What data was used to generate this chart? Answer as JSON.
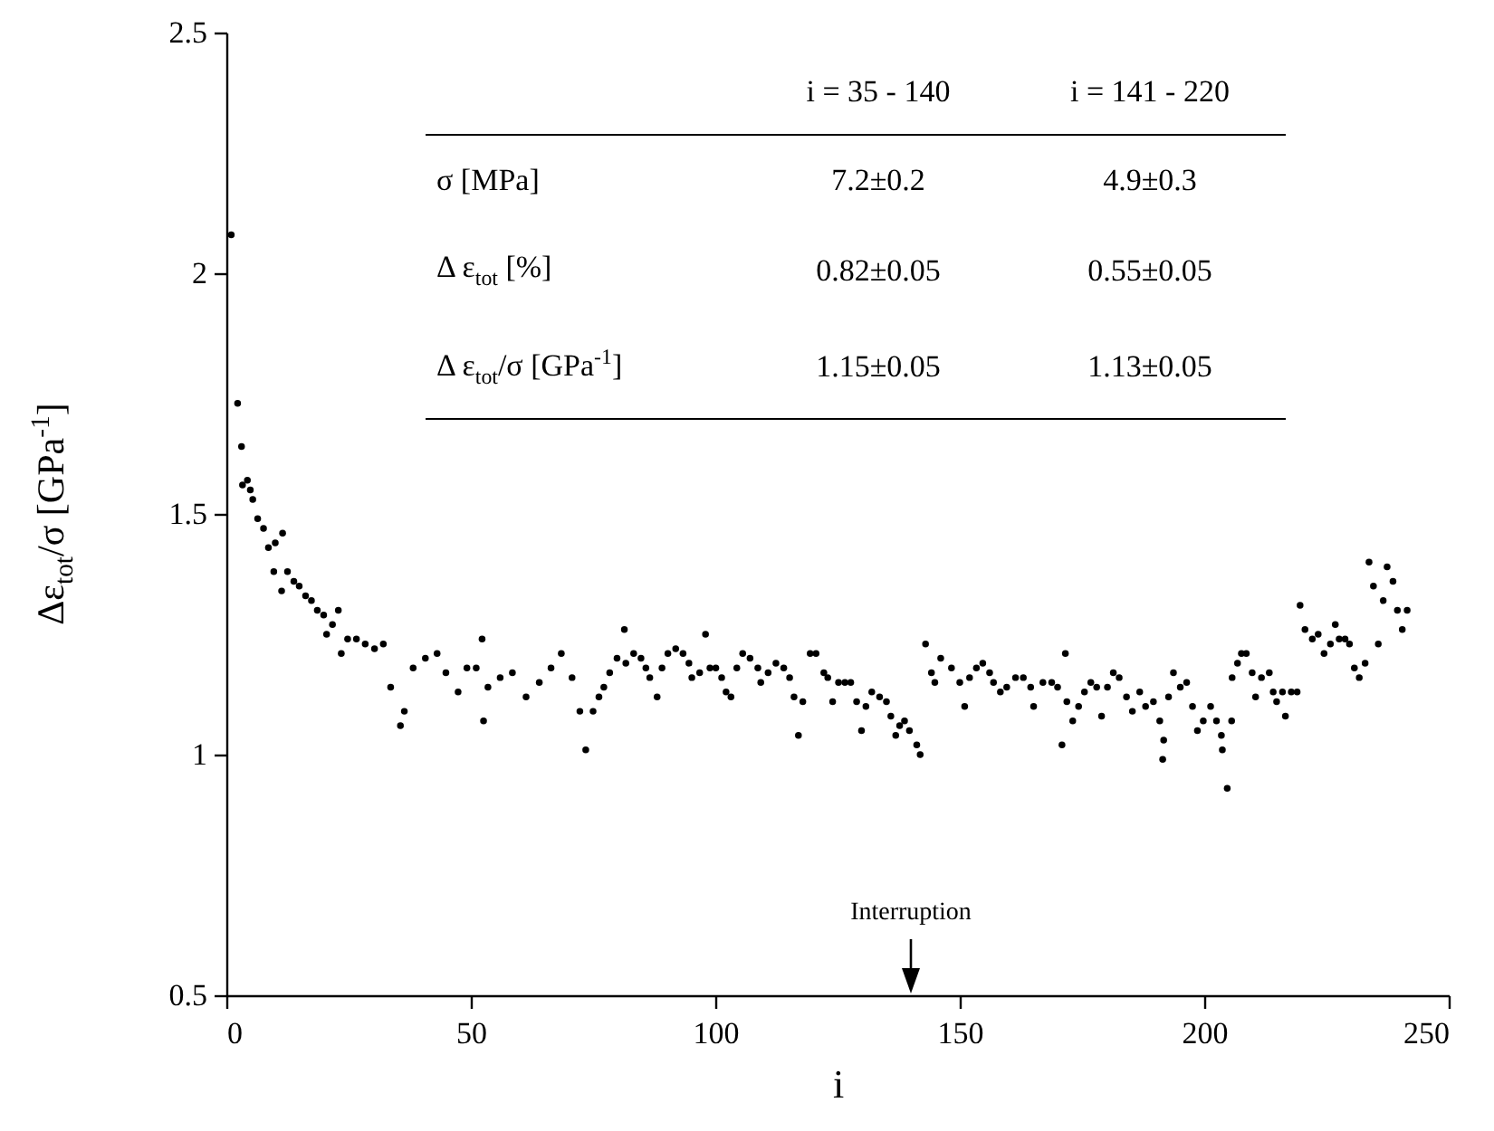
{
  "chart_data": {
    "type": "scatter",
    "xlabel": "i",
    "ylabel": "Δε$_{tot}$/σ  [GPa$^{-1}$]",
    "xlim": [
      0,
      250
    ],
    "ylim": [
      0.5,
      2.5
    ],
    "xticks": [
      0,
      50,
      100,
      150,
      200,
      250
    ],
    "yticks": [
      0.5,
      1,
      1.5,
      2,
      2.5
    ],
    "marker": "circle",
    "color": "#000000",
    "x": [
      1,
      2.3,
      3.1,
      3.3,
      4.3,
      4.9,
      5.4,
      6.4,
      7.6,
      8.6,
      10,
      11.5,
      9.7,
      11.3,
      12.5,
      13.8,
      14.9,
      16.2,
      17.4,
      18.6,
      19.9,
      21.7,
      22.9,
      20.5,
      23.5,
      24.8,
      26.6,
      28.4,
      30.3,
      32.1,
      33.6,
      35.6,
      36.4,
      38.2,
      40.7,
      43.1,
      44.9,
      47.4,
      49.2,
      51.1,
      52.3,
      52.6,
      53.5,
      56,
      58.5,
      61.3,
      64,
      66.4,
      68.5,
      70.7,
      72.3,
      73.5,
      75,
      76.2,
      77.2,
      78.4,
      79.9,
      81.4,
      81.7,
      83.3,
      84.8,
      85.8,
      86.6,
      88.1,
      89.1,
      90.3,
      91.9,
      93.4,
      94.6,
      95.2,
      96.8,
      98,
      98.9,
      100.1,
      101.3,
      102.2,
      103.2,
      104.4,
      105.6,
      107.1,
      108.7,
      109.3,
      110.8,
      112.4,
      114,
      115.2,
      116.1,
      117,
      117.9,
      119.4,
      120.6,
      122.2,
      123,
      124,
      125.2,
      126.5,
      127.7,
      128.9,
      129.9,
      130.8,
      132,
      133.6,
      135,
      135.9,
      136.9,
      137.7,
      138.7,
      139.7,
      141.2,
      141.9,
      143,
      144.2,
      144.9,
      146.1,
      148.3,
      150,
      151,
      152,
      153.4,
      154.7,
      156.1,
      156.9,
      158.3,
      159.6,
      161.4,
      163,
      164.5,
      165.1,
      167,
      168.8,
      170,
      170.9,
      171.6,
      171.9,
      173.1,
      174.3,
      175.5,
      176.8,
      178,
      179,
      180.2,
      181.4,
      182.6,
      184.1,
      185.3,
      186.8,
      188,
      189.6,
      190.9,
      191.5,
      191.7,
      192.7,
      193.7,
      195.1,
      196.4,
      197.6,
      198.6,
      199.8,
      201.3,
      202.5,
      203.5,
      203.7,
      204.7,
      205.6,
      205.7,
      206.8,
      207.6,
      208.6,
      209.8,
      210.5,
      211.7,
      213.3,
      214.1,
      214.8,
      216,
      216.6,
      217.8,
      219,
      219.6,
      220.6,
      222.1,
      223.3,
      224.5,
      225.8,
      226.8,
      227.6,
      228.8,
      229.7,
      230.7,
      231.7,
      232.9,
      233.7,
      234.6,
      235.6,
      236.6,
      237.4,
      238.6,
      239.5,
      240.5,
      241.5
    ],
    "values": [
      2.08,
      1.73,
      1.64,
      1.56,
      1.57,
      1.55,
      1.53,
      1.49,
      1.47,
      1.43,
      1.44,
      1.46,
      1.38,
      1.34,
      1.38,
      1.36,
      1.35,
      1.33,
      1.32,
      1.3,
      1.29,
      1.27,
      1.3,
      1.25,
      1.21,
      1.24,
      1.24,
      1.23,
      1.22,
      1.23,
      1.14,
      1.06,
      1.09,
      1.18,
      1.2,
      1.21,
      1.17,
      1.13,
      1.18,
      1.18,
      1.24,
      1.07,
      1.14,
      1.16,
      1.17,
      1.12,
      1.15,
      1.18,
      1.21,
      1.16,
      1.09,
      1.01,
      1.09,
      1.12,
      1.14,
      1.17,
      1.2,
      1.26,
      1.19,
      1.21,
      1.2,
      1.18,
      1.16,
      1.12,
      1.18,
      1.21,
      1.22,
      1.21,
      1.19,
      1.16,
      1.17,
      1.25,
      1.18,
      1.18,
      1.16,
      1.13,
      1.12,
      1.18,
      1.21,
      1.2,
      1.18,
      1.15,
      1.17,
      1.19,
      1.18,
      1.16,
      1.12,
      1.04,
      1.11,
      1.21,
      1.21,
      1.17,
      1.16,
      1.11,
      1.15,
      1.15,
      1.15,
      1.11,
      1.05,
      1.1,
      1.13,
      1.12,
      1.11,
      1.08,
      1.04,
      1.06,
      1.07,
      1.05,
      1.02,
      1,
      1.23,
      1.17,
      1.15,
      1.2,
      1.18,
      1.15,
      1.1,
      1.16,
      1.18,
      1.19,
      1.17,
      1.15,
      1.13,
      1.14,
      1.16,
      1.16,
      1.14,
      1.1,
      1.15,
      1.15,
      1.14,
      1.02,
      1.21,
      1.11,
      1.07,
      1.1,
      1.13,
      1.15,
      1.14,
      1.08,
      1.14,
      1.17,
      1.16,
      1.12,
      1.09,
      1.13,
      1.1,
      1.11,
      1.07,
      0.99,
      1.03,
      1.12,
      1.17,
      1.14,
      1.15,
      1.1,
      1.05,
      1.07,
      1.1,
      1.07,
      1.04,
      1.01,
      0.93,
      1.07,
      1.16,
      1.19,
      1.21,
      1.21,
      1.17,
      1.12,
      1.16,
      1.17,
      1.13,
      1.11,
      1.13,
      1.08,
      1.13,
      1.13,
      1.31,
      1.26,
      1.24,
      1.25,
      1.21,
      1.23,
      1.27,
      1.24,
      1.24,
      1.23,
      1.18,
      1.16,
      1.19,
      1.4,
      1.35,
      1.23,
      1.32,
      1.39,
      1.36,
      1.3,
      1.26,
      1.3
    ],
    "annotations": [
      "i = 35 - 140",
      "i = 141 - 220",
      "σ [MPa]",
      "7.2±0.2",
      "4.9±0.3",
      "Δ ε$_{tot}$ [%]",
      "0.82±0.05",
      "0.55±0.05",
      "Δ ε$_{tot}$/σ [GPa$^{-1}$]",
      "1.15±0.05",
      "1.13±0.05",
      "Interruption"
    ]
  }
}
